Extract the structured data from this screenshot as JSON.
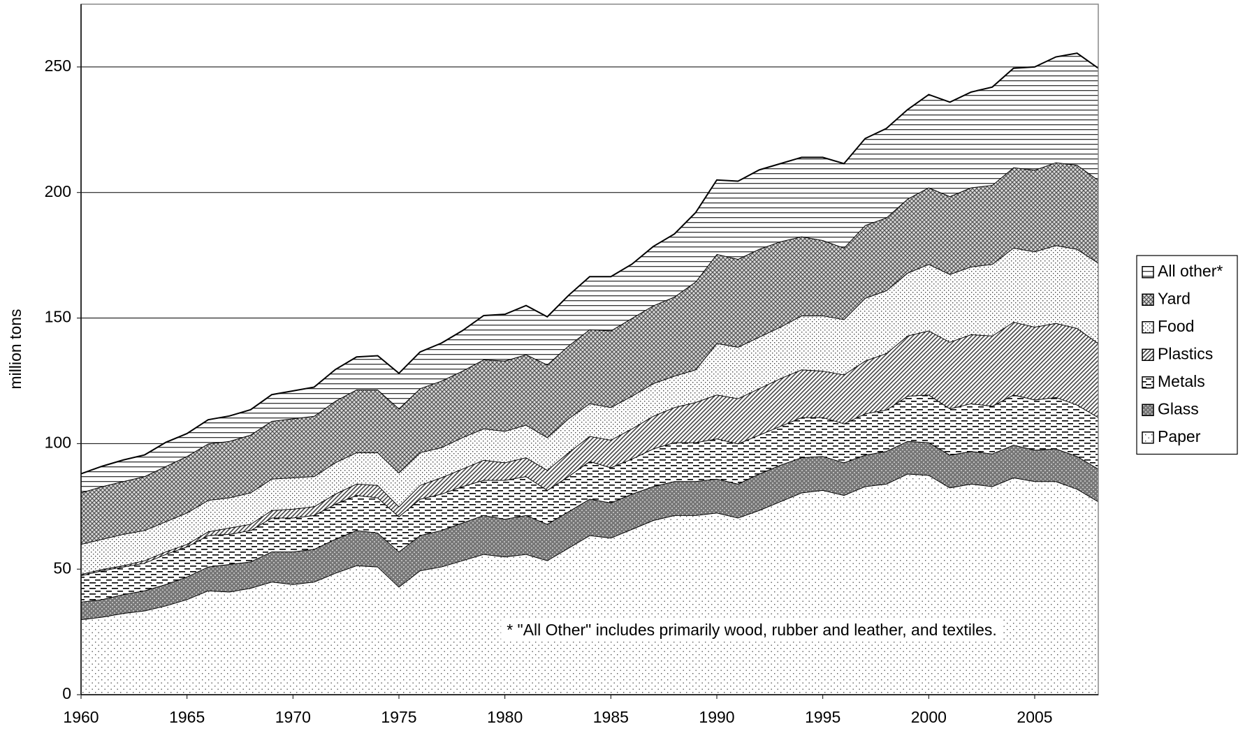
{
  "chart_data": {
    "type": "stacked-area",
    "ylabel": "million tons",
    "annotation": "* \"All Other\" includes primarily wood, rubber and leather, and textiles.",
    "x": [
      1960,
      1961,
      1962,
      1963,
      1964,
      1965,
      1966,
      1967,
      1968,
      1969,
      1970,
      1971,
      1972,
      1973,
      1974,
      1975,
      1976,
      1977,
      1978,
      1979,
      1980,
      1981,
      1982,
      1983,
      1984,
      1985,
      1986,
      1987,
      1988,
      1989,
      1990,
      1991,
      1992,
      1993,
      1994,
      1995,
      1996,
      1997,
      1998,
      1999,
      2000,
      2001,
      2002,
      2003,
      2004,
      2005,
      2006,
      2007,
      2008
    ],
    "xlim": [
      1960,
      2008
    ],
    "xticks": [
      1960,
      1965,
      1970,
      1975,
      1980,
      1985,
      1990,
      1995,
      2000,
      2005
    ],
    "ylim": [
      0,
      275
    ],
    "yticks": [
      0,
      50,
      100,
      150,
      200,
      250
    ],
    "grid": true,
    "legend": "right",
    "series": [
      {
        "name": "Paper",
        "color": "#ffffff",
        "pattern": "sparse-dots",
        "values": [
          30,
          31,
          32.5,
          33.5,
          35.5,
          38,
          41.5,
          41,
          42.5,
          45,
          44,
          45,
          48.5,
          51.5,
          51,
          43,
          49.5,
          51,
          53.5,
          56,
          55,
          56,
          53.5,
          58.5,
          63.5,
          62.5,
          66,
          69.5,
          71.5,
          71.5,
          72.5,
          70.5,
          73.5,
          77,
          80.5,
          81.5,
          79.5,
          83,
          84,
          88,
          87.5,
          82.5,
          84,
          83,
          86.5,
          85,
          85,
          82,
          77
        ]
      },
      {
        "name": "Glass",
        "color": "#808080",
        "pattern": "dark-mesh",
        "values": [
          7,
          7,
          7.5,
          8,
          8.5,
          9,
          9.5,
          11,
          10.5,
          12,
          13,
          13,
          13.5,
          14,
          13.5,
          14,
          14,
          14.5,
          15,
          15.5,
          15,
          15.5,
          14.5,
          14.5,
          14.5,
          14,
          14,
          13.5,
          13.5,
          13.5,
          13.5,
          13.5,
          14.5,
          14.5,
          14,
          13.5,
          13,
          12.5,
          13,
          13,
          13,
          13,
          13,
          13,
          13,
          12.5,
          13,
          13,
          13
        ]
      },
      {
        "name": "Metals",
        "color": "#ffffff",
        "pattern": "dashes",
        "values": [
          10.5,
          11.5,
          11,
          11,
          12,
          12,
          12.5,
          12,
          12.5,
          13.5,
          13.5,
          13.5,
          14,
          14,
          14,
          14,
          14.5,
          14.5,
          14.5,
          14,
          15.5,
          15.5,
          13.5,
          14,
          15,
          14,
          14,
          15,
          15.5,
          15.5,
          16,
          16,
          15.5,
          15.5,
          16,
          15.5,
          15.5,
          16.5,
          16.5,
          18,
          19,
          18.5,
          19,
          19,
          20,
          20,
          20.5,
          20.5,
          20.5
        ]
      },
      {
        "name": "Plastics",
        "color": "#ffffff",
        "pattern": "diagonal",
        "values": [
          0.5,
          0.5,
          0.5,
          1,
          1,
          1,
          1.5,
          2.5,
          2.5,
          3,
          3.5,
          3.5,
          4,
          4.5,
          5,
          4,
          5.5,
          6.5,
          7,
          8,
          7,
          7.5,
          8,
          9.5,
          10,
          11,
          12,
          13,
          14,
          16,
          17.5,
          18,
          18.5,
          19,
          19,
          18.5,
          19.5,
          21,
          22.5,
          24,
          25.5,
          26.5,
          27.5,
          28,
          29,
          29,
          29.5,
          30.5,
          29.5
        ]
      },
      {
        "name": "Food",
        "color": "#ffffff",
        "pattern": "dense-dots",
        "values": [
          12,
          12,
          12.5,
          12,
          12,
          12.5,
          12.5,
          12,
          12.5,
          12.5,
          12.5,
          12,
          12.5,
          12.5,
          13,
          13.5,
          13,
          12,
          12.5,
          12.5,
          12.5,
          13,
          13,
          13.5,
          13,
          13,
          13,
          13,
          12.5,
          13,
          20.5,
          20.5,
          20.5,
          20.5,
          21.5,
          22,
          22,
          25,
          25,
          25,
          26.5,
          27,
          27,
          28.5,
          29.5,
          30,
          31,
          31.5,
          32
        ]
      },
      {
        "name": "Yard",
        "color": "#b0b0b0",
        "pattern": "crosshatch",
        "values": [
          20.5,
          21,
          21,
          21.5,
          22,
          22.5,
          22.5,
          22.5,
          23,
          23,
          23.5,
          24,
          24.5,
          25,
          25,
          25.5,
          25.5,
          26.5,
          26.5,
          27.5,
          28,
          28,
          29,
          29,
          29.5,
          30.5,
          31,
          31,
          31.5,
          35,
          35.5,
          35,
          35,
          34,
          31.5,
          30,
          28.5,
          29,
          29,
          29.5,
          30.5,
          31,
          31.5,
          31.5,
          32,
          32.5,
          33,
          33.5,
          33
        ]
      },
      {
        "name": "All other*",
        "color": "#ffffff",
        "pattern": "horizontal",
        "values": [
          7.5,
          8,
          8.5,
          8.5,
          9.5,
          9,
          9.5,
          10,
          10,
          10.5,
          11,
          11.5,
          12.5,
          13,
          13.5,
          14,
          14.5,
          15,
          16,
          17.5,
          18.5,
          19.5,
          19,
          20,
          21,
          21.5,
          21.5,
          23.5,
          25,
          27.5,
          29.5,
          31,
          31.5,
          31,
          31.5,
          33,
          33.5,
          34.5,
          35.5,
          35.5,
          37,
          37.5,
          38,
          39,
          39.5,
          41,
          42,
          44.5,
          44.5
        ]
      }
    ]
  }
}
